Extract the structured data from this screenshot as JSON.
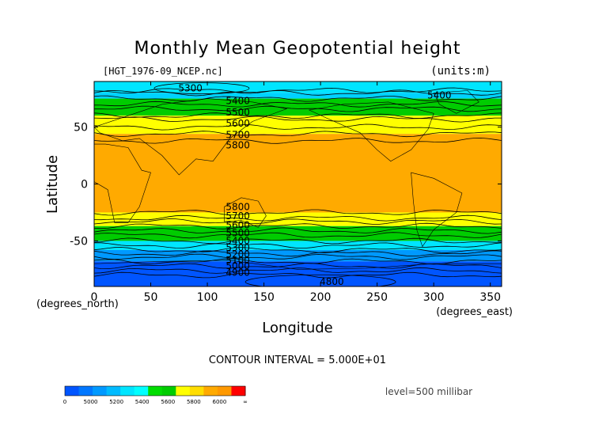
{
  "chart_data": {
    "type": "heatmap",
    "title": "Monthly Mean Geopotential height",
    "file_label": "[HGT_1976-09_NCEP.nc]",
    "units_label": "(units:m)",
    "xlabel": "Longitude",
    "ylabel": "Latitude",
    "x_unit_label": "(degrees_east)",
    "y_unit_label": "(degrees_north)",
    "xlim": [
      0,
      360
    ],
    "ylim": [
      -90,
      90
    ],
    "x_ticks": [
      0,
      50,
      100,
      150,
      200,
      250,
      300,
      350
    ],
    "y_ticks": [
      -50,
      0,
      50
    ],
    "contour_interval_text": "CONTOUR INTERVAL = 5.000E+01",
    "level_text": "level=500 millibar",
    "grid": false,
    "bands": [
      {
        "lat_from": 90,
        "lat_to": 80,
        "min": 5200,
        "max": 5400,
        "color": "#00e5ff"
      },
      {
        "lat_from": 80,
        "lat_to": 75,
        "min": 5300,
        "max": 5400,
        "color": "#00d2ff"
      },
      {
        "lat_from": 75,
        "lat_to": 60,
        "min": 5400,
        "max": 5600,
        "color": "#00cc00"
      },
      {
        "lat_from": 60,
        "lat_to": 44,
        "min": 5600,
        "max": 5800,
        "color": "#ffff00"
      },
      {
        "lat_from": 44,
        "lat_to": -25,
        "min": 5800,
        "max": 6000,
        "color": "#ffaa00"
      },
      {
        "lat_from": -25,
        "lat_to": -37,
        "min": 5600,
        "max": 5800,
        "color": "#ffff00"
      },
      {
        "lat_from": -37,
        "lat_to": -50,
        "min": 5400,
        "max": 5600,
        "color": "#00cc00"
      },
      {
        "lat_from": -50,
        "lat_to": -58,
        "min": 5200,
        "max": 5400,
        "color": "#00e5ff"
      },
      {
        "lat_from": -58,
        "lat_to": -68,
        "min": 5000,
        "max": 5200,
        "color": "#0099ff"
      },
      {
        "lat_from": -68,
        "lat_to": -90,
        "min": 4800,
        "max": 5000,
        "color": "#0055ff"
      }
    ],
    "contour_labels": [
      {
        "text": "5300",
        "lon": 85,
        "lat": 84
      },
      {
        "text": "5400",
        "lon": 127,
        "lat": 73
      },
      {
        "text": "5500",
        "lon": 127,
        "lat": 63
      },
      {
        "text": "5600",
        "lon": 127,
        "lat": 53
      },
      {
        "text": "5700",
        "lon": 127,
        "lat": 43
      },
      {
        "text": "5800",
        "lon": 127,
        "lat": 34
      },
      {
        "text": "5400",
        "lon": 305,
        "lat": 78
      },
      {
        "text": "5800",
        "lon": 127,
        "lat": -20
      },
      {
        "text": "5700",
        "lon": 127,
        "lat": -28
      },
      {
        "text": "5600",
        "lon": 127,
        "lat": -36
      },
      {
        "text": "5500",
        "lon": 127,
        "lat": -43
      },
      {
        "text": "5400",
        "lon": 127,
        "lat": -50
      },
      {
        "text": "5300",
        "lon": 127,
        "lat": -56
      },
      {
        "text": "5200",
        "lon": 127,
        "lat": -62
      },
      {
        "text": "5100",
        "lon": 127,
        "lat": -67
      },
      {
        "text": "5000",
        "lon": 127,
        "lat": -72
      },
      {
        "text": "4900",
        "lon": 127,
        "lat": -78
      },
      {
        "text": "4800",
        "lon": 210,
        "lat": -86
      }
    ],
    "colorbar": {
      "colors": [
        "#0055ff",
        "#0077ff",
        "#0099ff",
        "#00bbff",
        "#00e5ff",
        "#00ffff",
        "#00dd00",
        "#00cc00",
        "#ffff00",
        "#ffdd00",
        "#ffaa00",
        "#ff9900",
        "#ff0000"
      ],
      "tick_labels": [
        "0",
        "5000",
        "5200",
        "5400",
        "5600",
        "5800",
        "6000",
        "∞"
      ]
    }
  }
}
